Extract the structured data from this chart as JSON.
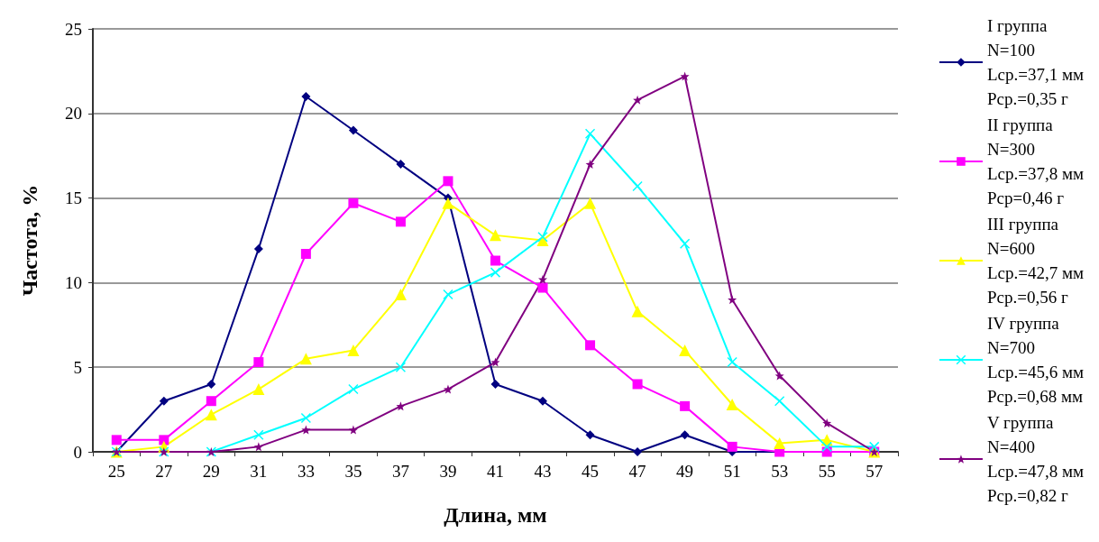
{
  "chart_data": {
    "type": "line",
    "xlabel": "Длина, мм",
    "ylabel": "Частота, %",
    "categories": [
      "25",
      "27",
      "29",
      "31",
      "33",
      "35",
      "37",
      "39",
      "41",
      "43",
      "45",
      "47",
      "49",
      "51",
      "53",
      "55",
      "57"
    ],
    "series": [
      {
        "name": "I группа\nN=100\nLср.=37,1 мм\nPср.=0,35 г",
        "color": "#000080",
        "marker": "diamond",
        "values": [
          0,
          3,
          4,
          12,
          21,
          19,
          17,
          15,
          4,
          3,
          1,
          0,
          1,
          0,
          0,
          0,
          0
        ]
      },
      {
        "name": "II группа\nN=300\nLср.=37,8 мм\nPср=0,46 г",
        "color": "#ff00ff",
        "marker": "square",
        "values": [
          0.7,
          0.7,
          3,
          5.3,
          11.7,
          14.7,
          13.6,
          16,
          11.3,
          9.7,
          6.3,
          4,
          2.7,
          0.3,
          0,
          0,
          0
        ]
      },
      {
        "name": "III группа\nN=600\nLср.=42,7 мм\nPср.=0,56 г",
        "color": "#ffff00",
        "marker": "triangle",
        "values": [
          0,
          0.3,
          2.2,
          3.7,
          5.5,
          6,
          9.3,
          14.7,
          12.8,
          12.5,
          14.7,
          8.3,
          6,
          2.8,
          0.5,
          0.7,
          0
        ]
      },
      {
        "name": "IV группа\nN=700\nLср.=45,6 мм\nPср.=0,68 мм",
        "color": "#00ffff",
        "marker": "cross",
        "values": [
          0,
          0,
          0,
          1,
          2,
          3.7,
          5,
          9.3,
          10.6,
          12.7,
          18.8,
          15.7,
          12.3,
          5.3,
          3,
          0.3,
          0.3
        ]
      },
      {
        "name": "V группа\nN=400\nLср.=47,8 мм\nPср.=0,82 г",
        "color": "#800080",
        "marker": "star",
        "values": [
          0,
          0,
          0,
          0.3,
          1.3,
          1.3,
          2.7,
          3.7,
          5.3,
          10.2,
          17,
          20.8,
          22.2,
          9,
          4.5,
          1.7,
          0
        ]
      }
    ],
    "ylim": [
      0,
      25
    ],
    "yticks": [
      0,
      5,
      10,
      15,
      20,
      25
    ],
    "grid": "y",
    "legend": "right",
    "line_style": "solid"
  }
}
